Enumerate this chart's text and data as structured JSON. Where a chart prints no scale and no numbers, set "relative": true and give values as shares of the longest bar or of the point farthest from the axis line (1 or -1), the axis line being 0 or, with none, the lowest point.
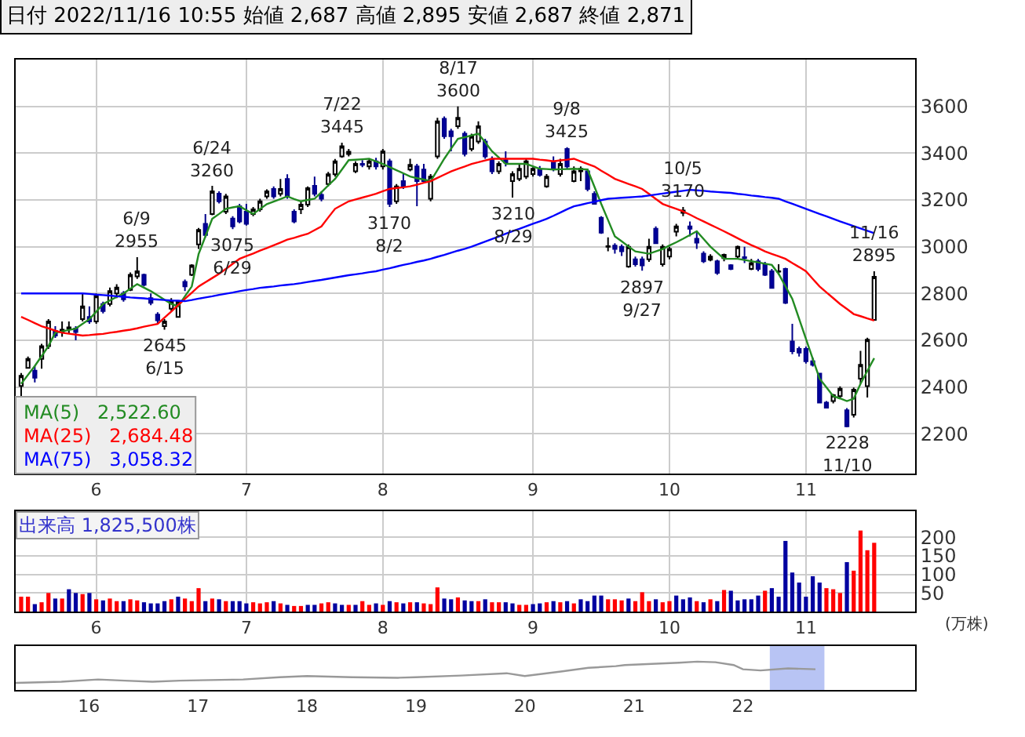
{
  "chart_data": [
    {
      "type": "candlestick",
      "title": "日付 2022/11/16 10:55 始値 2,687 高値 2,895 安値 2,687 終値 2,871",
      "categories": [
        null,
        null,
        null,
        null,
        null,
        null,
        null,
        null,
        null,
        null,
        null,
        "6",
        null,
        null,
        null,
        null,
        null,
        null,
        null,
        null,
        null,
        null,
        null,
        null,
        null,
        null,
        null,
        null,
        null,
        null,
        null,
        null,
        null,
        "7",
        null,
        null,
        null,
        null,
        null,
        null,
        null,
        null,
        null,
        null,
        null,
        null,
        null,
        null,
        null,
        null,
        null,
        null,
        null,
        "8",
        null,
        null,
        null,
        null,
        null,
        null,
        null,
        null,
        null,
        null,
        null,
        null,
        null,
        null,
        null,
        null,
        null,
        null,
        null,
        null,
        null,
        "9",
        null,
        null,
        null,
        null,
        null,
        null,
        null,
        null,
        null,
        null,
        null,
        null,
        null,
        null,
        null,
        null,
        null,
        null,
        null,
        "10",
        null,
        null,
        null,
        null,
        null,
        null,
        null,
        null,
        null,
        null,
        null,
        null,
        null,
        null,
        null,
        null,
        null,
        null,
        null,
        "11",
        null,
        null,
        null,
        null,
        null,
        null,
        null,
        null,
        null,
        null
      ],
      "ohlc": [
        [
          2405,
          2460,
          2350,
          2448
        ],
        [
          2482,
          2530,
          2478,
          2520
        ],
        [
          2470,
          2490,
          2420,
          2440
        ],
        [
          2520,
          2585,
          2478,
          2575
        ],
        [
          2575,
          2690,
          2563,
          2680
        ],
        [
          2640,
          2660,
          2610,
          2620
        ],
        [
          2635,
          2680,
          2615,
          2645
        ],
        [
          2650,
          2680,
          2630,
          2655
        ],
        [
          2650,
          2660,
          2600,
          2635
        ],
        [
          2690,
          2800,
          2680,
          2745
        ],
        [
          2700,
          2745,
          2670,
          2680
        ],
        [
          2680,
          2800,
          2670,
          2790
        ],
        [
          2755,
          2765,
          2715,
          2725
        ],
        [
          2755,
          2825,
          2745,
          2810
        ],
        [
          2800,
          2840,
          2780,
          2825
        ],
        [
          2800,
          2810,
          2765,
          2775
        ],
        [
          2815,
          2890,
          2810,
          2880
        ],
        [
          2873,
          2955,
          2862,
          2895
        ],
        [
          2880,
          2885,
          2830,
          2837
        ],
        [
          2780,
          2800,
          2750,
          2760
        ],
        [
          2710,
          2720,
          2670,
          2685
        ],
        [
          2660,
          2690,
          2645,
          2680
        ],
        [
          2735,
          2780,
          2725,
          2765
        ],
        [
          2700,
          2770,
          2700,
          2765
        ],
        [
          2850,
          2860,
          2810,
          2830
        ],
        [
          2880,
          2925,
          2875,
          2920
        ],
        [
          3010,
          3080,
          2990,
          3072
        ],
        [
          3098,
          3140,
          3040,
          3050
        ],
        [
          3140,
          3260,
          3135,
          3237
        ],
        [
          3227,
          3237,
          3185,
          3194
        ],
        [
          3150,
          3226,
          3140,
          3215
        ],
        [
          3120,
          3130,
          3075,
          3087
        ],
        [
          3173,
          3183,
          3100,
          3108
        ],
        [
          3150,
          3183,
          3090,
          3098
        ],
        [
          3140,
          3170,
          3130,
          3160
        ],
        [
          3160,
          3205,
          3150,
          3194
        ],
        [
          3215,
          3245,
          3205,
          3237
        ],
        [
          3247,
          3258,
          3205,
          3215
        ],
        [
          3226,
          3290,
          3215,
          3247
        ],
        [
          3290,
          3310,
          3205,
          3215
        ],
        [
          3150,
          3160,
          3100,
          3108
        ],
        [
          3160,
          3194,
          3140,
          3180
        ],
        [
          3180,
          3258,
          3170,
          3250
        ],
        [
          3260,
          3300,
          3215,
          3226
        ],
        [
          3222,
          3237,
          3194,
          3205
        ],
        [
          3268,
          3320,
          3258,
          3310
        ],
        [
          3310,
          3375,
          3300,
          3365
        ],
        [
          3386,
          3445,
          3380,
          3430
        ],
        [
          3396,
          3418,
          3386,
          3406
        ],
        [
          3322,
          3365,
          3315,
          3354
        ],
        [
          3354,
          3370,
          3340,
          3350
        ],
        [
          3343,
          3375,
          3330,
          3365
        ],
        [
          3365,
          3380,
          3330,
          3343
        ],
        [
          3343,
          3418,
          3330,
          3408
        ],
        [
          3365,
          3376,
          3170,
          3183
        ],
        [
          3194,
          3268,
          3183,
          3258
        ],
        [
          3280,
          3311,
          3247,
          3258
        ],
        [
          3330,
          3376,
          3322,
          3350
        ],
        [
          3343,
          3354,
          3173,
          3280
        ],
        [
          3330,
          3354,
          3270,
          3280
        ],
        [
          3205,
          3311,
          3194,
          3300
        ],
        [
          3386,
          3551,
          3376,
          3536
        ],
        [
          3547,
          3557,
          3461,
          3472
        ],
        [
          3493,
          3504,
          3408,
          3472
        ],
        [
          3515,
          3600,
          3504,
          3551
        ],
        [
          3483,
          3493,
          3386,
          3397
        ],
        [
          3418,
          3483,
          3408,
          3472
        ],
        [
          3450,
          3536,
          3440,
          3515
        ],
        [
          3450,
          3461,
          3376,
          3386
        ],
        [
          3375,
          3386,
          3311,
          3322
        ],
        [
          3322,
          3365,
          3311,
          3354
        ],
        [
          3370,
          3408,
          3343,
          3360
        ],
        [
          3280,
          3322,
          3210,
          3311
        ],
        [
          3290,
          3354,
          3280,
          3333
        ],
        [
          3300,
          3376,
          3290,
          3365
        ],
        [
          3311,
          3340,
          3300,
          3333
        ],
        [
          3330,
          3345,
          3300,
          3307
        ],
        [
          3258,
          3311,
          3252,
          3300
        ],
        [
          3360,
          3386,
          3322,
          3333
        ],
        [
          3311,
          3376,
          3300,
          3354
        ],
        [
          3418,
          3425,
          3333,
          3343
        ],
        [
          3280,
          3343,
          3275,
          3322
        ],
        [
          3322,
          3343,
          3280,
          3333
        ],
        [
          3322,
          3333,
          3237,
          3247
        ],
        [
          3226,
          3237,
          3180,
          3183
        ],
        [
          3124,
          3130,
          3055,
          3060
        ],
        [
          3000,
          3040,
          2980,
          3002
        ],
        [
          3005,
          3015,
          2970,
          2990
        ],
        [
          3000,
          3010,
          2960,
          2980
        ],
        [
          2915,
          3010,
          2910,
          3000
        ],
        [
          2946,
          2958,
          2915,
          2925
        ],
        [
          2946,
          2958,
          2897,
          2920
        ],
        [
          2946,
          3034,
          2935,
          3000
        ],
        [
          3077,
          3087,
          3013,
          3015
        ],
        [
          2925,
          3010,
          2915,
          3000
        ],
        [
          2958,
          3000,
          2946,
          2990
        ],
        [
          3064,
          3098,
          3044,
          3087
        ],
        [
          3145,
          3170,
          3130,
          3155
        ],
        [
          3087,
          3108,
          3044,
          3077
        ],
        [
          3034,
          3066,
          2990,
          3017
        ],
        [
          2970,
          2980,
          2930,
          2938
        ],
        [
          2944,
          2968,
          2938,
          2958
        ],
        [
          2938,
          2944,
          2880,
          2888
        ],
        [
          2951,
          2970,
          2938,
          2965
        ],
        [
          2921,
          2925,
          2900,
          2905
        ],
        [
          2958,
          3005,
          2950,
          3000
        ],
        [
          2955,
          3000,
          2930,
          2951
        ],
        [
          2905,
          2948,
          2900,
          2930
        ],
        [
          2938,
          2948,
          2895,
          2905
        ],
        [
          2925,
          2935,
          2875,
          2880
        ],
        [
          2895,
          2905,
          2820,
          2824
        ],
        [
          2893,
          2925,
          2880,
          2895
        ],
        [
          2905,
          2910,
          2755,
          2760
        ],
        [
          2595,
          2670,
          2540,
          2553
        ],
        [
          2563,
          2573,
          2530,
          2547
        ],
        [
          2563,
          2573,
          2500,
          2510
        ],
        [
          2510,
          2525,
          2488,
          2495
        ],
        [
          2457,
          2461,
          2330,
          2333
        ],
        [
          2333,
          2340,
          2308,
          2312
        ],
        [
          2340,
          2370,
          2330,
          2365
        ],
        [
          2361,
          2403,
          2350,
          2393
        ],
        [
          2301,
          2310,
          2228,
          2232
        ],
        [
          2281,
          2398,
          2270,
          2389
        ],
        [
          2436,
          2555,
          2415,
          2495
        ],
        [
          2404,
          2611,
          2355,
          2602
        ],
        [
          2687,
          2895,
          2687,
          2871
        ]
      ],
      "series": [
        {
          "name": "MA(5) 2,522.60",
          "type": "line",
          "color": "#228b22",
          "values": [
            2414,
            2452,
            2490,
            2532,
            2575,
            2632,
            2638,
            2644,
            2650,
            2670,
            2690,
            2722,
            2755,
            2770,
            2785,
            2800,
            2820,
            2840,
            2825,
            2810,
            2792,
            2773,
            2755,
            2745,
            2788,
            2830,
            2968,
            3044,
            3119,
            3140,
            3162,
            3168,
            3173,
            3156,
            3140,
            3161,
            3182,
            3193,
            3204,
            3215,
            3204,
            3194,
            3200,
            3205,
            3233,
            3262,
            3290,
            3330,
            3370,
            3372,
            3374,
            3376,
            3365,
            3354,
            3340,
            3327,
            3314,
            3300,
            3293,
            3287,
            3280,
            3328,
            3376,
            3419,
            3461,
            3468,
            3476,
            3483,
            3446,
            3408,
            3381,
            3354,
            3354,
            3354,
            3354,
            3344,
            3333,
            3332,
            3330,
            3331,
            3332,
            3333,
            3332,
            3330,
            3257,
            3183,
            3114,
            3044,
            3023,
            3001,
            2980,
            2975,
            2970,
            2980,
            2990,
            3005,
            3019,
            3034,
            3050,
            3066,
            3033,
            3000,
            2974,
            2948,
            2948,
            2948,
            2943,
            2938,
            2933,
            2927,
            2922,
            2884,
            2831,
            2777,
            2692,
            2606,
            2521,
            2436,
            2399,
            2361,
            2351,
            2340,
            2350,
            2414,
            2469,
            2523
          ]
        },
        {
          "name": "MA(25) 2,684.48",
          "type": "line",
          "color": "#ff0000",
          "values": [
            2700,
            2687,
            2673,
            2660,
            2651,
            2641,
            2632,
            2628,
            2624,
            2620,
            2622,
            2625,
            2627,
            2632,
            2636,
            2641,
            2645,
            2651,
            2658,
            2664,
            2670,
            2697,
            2723,
            2750,
            2777,
            2803,
            2830,
            2848,
            2866,
            2884,
            2905,
            2927,
            2948,
            2960,
            2971,
            2983,
            2994,
            3006,
            3018,
            3030,
            3038,
            3047,
            3055,
            3071,
            3087,
            3125,
            3162,
            3178,
            3194,
            3202,
            3210,
            3218,
            3226,
            3237,
            3247,
            3251,
            3254,
            3258,
            3265,
            3273,
            3280,
            3294,
            3308,
            3322,
            3333,
            3343,
            3354,
            3361,
            3369,
            3376,
            3376,
            3376,
            3376,
            3376,
            3376,
            3376,
            3372,
            3369,
            3365,
            3369,
            3372,
            3376,
            3365,
            3354,
            3343,
            3325,
            3308,
            3290,
            3279,
            3268,
            3258,
            3247,
            3226,
            3204,
            3183,
            3172,
            3162,
            3151,
            3137,
            3122,
            3108,
            3094,
            3080,
            3066,
            3051,
            3036,
            3021,
            3007,
            2994,
            2980,
            2969,
            2959,
            2948,
            2930,
            2913,
            2895,
            2862,
            2830,
            2805,
            2780,
            2755,
            2734,
            2712,
            2703,
            2693,
            2684
          ]
        },
        {
          "name": "MA(75) 3,058.32",
          "type": "line",
          "color": "#0000ff",
          "values": [
            2800,
            2800,
            2800,
            2800,
            2800,
            2800,
            2800,
            2800,
            2800,
            2800,
            2798,
            2795,
            2793,
            2791,
            2788,
            2786,
            2783,
            2781,
            2779,
            2776,
            2774,
            2772,
            2770,
            2769,
            2767,
            2772,
            2778,
            2783,
            2788,
            2794,
            2799,
            2804,
            2810,
            2815,
            2819,
            2824,
            2827,
            2830,
            2834,
            2837,
            2840,
            2844,
            2849,
            2854,
            2858,
            2863,
            2868,
            2873,
            2878,
            2882,
            2886,
            2891,
            2895,
            2902,
            2908,
            2915,
            2922,
            2928,
            2935,
            2941,
            2948,
            2957,
            2965,
            2974,
            2983,
            2991,
            3000,
            3011,
            3022,
            3033,
            3044,
            3055,
            3066,
            3076,
            3087,
            3098,
            3108,
            3119,
            3132,
            3146,
            3160,
            3173,
            3179,
            3186,
            3192,
            3199,
            3205,
            3207,
            3209,
            3211,
            3213,
            3215,
            3219,
            3223,
            3227,
            3231,
            3235,
            3239,
            3243,
            3241,
            3239,
            3236,
            3234,
            3232,
            3230,
            3226,
            3223,
            3219,
            3216,
            3212,
            3209,
            3205,
            3194,
            3184,
            3173,
            3162,
            3151,
            3140,
            3130,
            3119,
            3108,
            3098,
            3088,
            3078,
            3068,
            3058
          ]
        }
      ],
      "annotations": [
        {
          "text": "6/9\n2955",
          "y": 2955
        },
        {
          "text": "2645\n6/15",
          "y": 2645
        },
        {
          "text": "6/24\n3260",
          "y": 3260
        },
        {
          "text": "3075\n6/29",
          "y": 3075
        },
        {
          "text": "7/22\n3445",
          "y": 3445
        },
        {
          "text": "3170\n8/2",
          "y": 3170
        },
        {
          "text": "8/17\n3600",
          "y": 3600
        },
        {
          "text": "3210\n8/29",
          "y": 3210
        },
        {
          "text": "9/8\n3425",
          "y": 3425
        },
        {
          "text": "2897\n9/27",
          "y": 2897
        },
        {
          "text": "10/5\n3170",
          "y": 3170
        },
        {
          "text": "2228\n11/10",
          "y": 2228
        },
        {
          "text": "11/16\n2895",
          "y": 2895
        }
      ],
      "ylim": [
        2030,
        3800
      ],
      "yticks": [
        2200,
        2400,
        2600,
        2800,
        3000,
        3200,
        3400,
        3600
      ],
      "grid": true,
      "legend": "bottom left"
    },
    {
      "type": "bar",
      "title": "出来高 1,825,500株",
      "ylabel": "(万株)",
      "categories": [
        null,
        null,
        null,
        null,
        null,
        null,
        null,
        null,
        null,
        null,
        null,
        "6",
        null,
        null,
        null,
        null,
        null,
        null,
        null,
        null,
        null,
        null,
        null,
        null,
        null,
        null,
        null,
        null,
        null,
        null,
        null,
        null,
        null,
        "7",
        null,
        null,
        null,
        null,
        null,
        null,
        null,
        null,
        null,
        null,
        null,
        null,
        null,
        null,
        null,
        null,
        null,
        null,
        null,
        "8",
        null,
        null,
        null,
        null,
        null,
        null,
        null,
        null,
        null,
        null,
        null,
        null,
        null,
        null,
        null,
        null,
        null,
        null,
        null,
        null,
        null,
        "9",
        null,
        null,
        null,
        null,
        null,
        null,
        null,
        null,
        null,
        null,
        null,
        null,
        null,
        null,
        null,
        null,
        null,
        null,
        null,
        "10",
        null,
        null,
        null,
        null,
        null,
        null,
        null,
        null,
        null,
        null,
        null,
        null,
        null,
        null,
        null,
        null,
        null,
        null,
        null,
        "11",
        null,
        null,
        null,
        null,
        null,
        null,
        null,
        null,
        null,
        null
      ],
      "values": [
        40,
        40,
        20,
        25,
        50,
        35,
        35,
        60,
        50,
        47,
        50,
        33,
        30,
        35,
        28,
        28,
        33,
        30,
        25,
        22,
        22,
        28,
        33,
        40,
        35,
        28,
        63,
        28,
        35,
        33,
        28,
        28,
        28,
        22,
        25,
        22,
        25,
        28,
        22,
        18,
        15,
        15,
        18,
        18,
        22,
        25,
        22,
        18,
        18,
        18,
        28,
        18,
        22,
        18,
        28,
        25,
        22,
        25,
        25,
        22,
        20,
        65,
        35,
        33,
        38,
        30,
        28,
        28,
        33,
        25,
        25,
        25,
        22,
        18,
        18,
        20,
        22,
        25,
        28,
        25,
        28,
        22,
        33,
        28,
        43,
        43,
        33,
        33,
        30,
        35,
        28,
        52,
        28,
        33,
        25,
        28,
        43,
        33,
        38,
        28,
        25,
        33,
        28,
        58,
        56,
        30,
        33,
        33,
        43,
        56,
        63,
        40,
        190,
        105,
        78,
        40,
        95,
        78,
        63,
        60,
        50,
        133,
        110,
        218,
        165,
        185
      ],
      "colors": [
        "#ff0000",
        "#ff0000",
        "#0000a0",
        "#ff0000",
        "#ff0000",
        "#0000a0",
        "#ff0000",
        "#0000a0",
        "#0000a0",
        "#ff0000",
        "#0000a0",
        "#ff0000",
        "#0000a0",
        "#ff0000",
        "#ff0000",
        "#0000a0",
        "#ff0000",
        "#ff0000",
        "#0000a0",
        "#0000a0",
        "#0000a0",
        "#0000a0",
        "#ff0000",
        "#0000a0",
        "#ff0000",
        "#ff0000",
        "#ff0000",
        "#0000a0",
        "#ff0000",
        "#0000a0",
        "#ff0000",
        "#0000a0",
        "#0000a0",
        "#0000a0",
        "#ff0000",
        "#ff0000",
        "#ff0000",
        "#0000a0",
        "#ff0000",
        "#0000a0",
        "#ff0000",
        "#ff0000",
        "#0000a0",
        "#0000a0",
        "#ff0000",
        "#ff0000",
        "#0000a0",
        "#0000a0",
        "#ff0000",
        "#0000a0",
        "#ff0000",
        "#ff0000",
        "#0000a0",
        "#ff0000",
        "#0000a0",
        "#ff0000",
        "#0000a0",
        "#ff0000",
        "#0000a0",
        "#ff0000",
        "#ff0000",
        "#ff0000",
        "#0000a0",
        "#0000a0",
        "#ff0000",
        "#0000a0",
        "#0000a0",
        "#ff0000",
        "#0000a0",
        "#ff0000",
        "#ff0000",
        "#0000a0",
        "#0000a0",
        "#ff0000",
        "#ff0000",
        "#0000a0",
        "#0000a0",
        "#ff0000",
        "#0000a0",
        "#ff0000",
        "#0000a0",
        "#ff0000",
        "#0000a0",
        "#0000a0",
        "#0000a0",
        "#0000a0",
        "#ff0000",
        "#ff0000",
        "#ff0000",
        "#0000a0",
        "#ff0000",
        "#ff0000",
        "#ff0000",
        "#0000a0",
        "#ff0000",
        "#ff0000",
        "#0000a0",
        "#0000a0",
        "#0000a0",
        "#ff0000",
        "#0000a0",
        "#ff0000",
        "#0000a0",
        "#ff0000",
        "#0000a0",
        "#0000a0",
        "#0000a0",
        "#0000a0",
        "#0000a0",
        "#ff0000",
        "#0000a0",
        "#0000a0",
        "#0000a0",
        "#0000a0",
        "#0000a0",
        "#0000a0",
        "#0000a0",
        "#0000a0",
        "#ff0000",
        "#ff0000",
        "#ff0000",
        "#0000a0",
        "#ff0000",
        "#ff0000",
        "#ff0000",
        "#ff0000"
      ],
      "ylim": [
        0,
        270
      ],
      "yticks": [
        50,
        100,
        150,
        200
      ],
      "grid": true
    },
    {
      "type": "line",
      "relative": true,
      "color": "#999999",
      "x": [
        "2015-05",
        "2015-10",
        "2016-02",
        "2016-05",
        "2016-08",
        "2016-11",
        "2017-06",
        "2017-10",
        "2018-01",
        "2018-06",
        "2018-11",
        "2019-01",
        "2019-06",
        "2019-11",
        "2020-01",
        "2020-05",
        "2020-08",
        "2020-11",
        "2020-12",
        "2021-03",
        "2021-06",
        "2021-08",
        "2021-10",
        "2021-12",
        "2022-01",
        "2022-03",
        "2022-06",
        "2022-09"
      ],
      "values": [
        0.25,
        0.29,
        0.37,
        0.33,
        0.29,
        0.33,
        0.37,
        0.45,
        0.49,
        0.45,
        0.43,
        0.45,
        0.51,
        0.59,
        0.49,
        0.65,
        0.78,
        0.84,
        0.88,
        0.92,
        0.96,
        1,
        0.98,
        0.88,
        0.73,
        0.69,
        0.76,
        0.73
      ],
      "xlim": [
        "2015-05",
        "2023-08"
      ],
      "xticks": [
        {
          "value": "2016-01",
          "label": "16"
        },
        {
          "value": "2017-01",
          "label": "17"
        },
        {
          "value": "2018-01",
          "label": "18"
        },
        {
          "value": "2019-01",
          "label": "19"
        },
        {
          "value": "2020-01",
          "label": "20"
        },
        {
          "value": "2021-01",
          "label": "21"
        },
        {
          "value": "2022-01",
          "label": "22"
        }
      ],
      "bands": [
        {
          "axis": "x",
          "from": "2022-04",
          "to": "2022-10",
          "color": "#b8c4f4"
        }
      ],
      "grid": false
    }
  ]
}
